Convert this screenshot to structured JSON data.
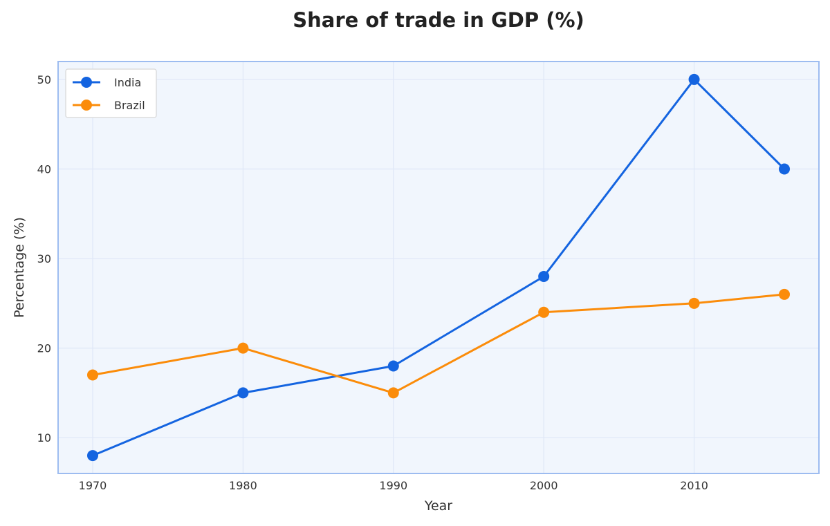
{
  "chart_data": {
    "type": "line",
    "title": "Share of trade in GDP (%)",
    "xlabel": "Year",
    "ylabel": "Percentage (%)",
    "x": [
      1970,
      1980,
      1990,
      2000,
      2010,
      2016
    ],
    "x_ticks": [
      "1970",
      "1980",
      "1990",
      "2000",
      "2010"
    ],
    "y_ticks": [
      "10",
      "20",
      "30",
      "40",
      "50"
    ],
    "xlim": [
      1967.7,
      2018.3
    ],
    "ylim": [
      6,
      52
    ],
    "grid": true,
    "legend_position": "top-left",
    "series": [
      {
        "name": "India",
        "color": "#1464e0",
        "values": [
          8,
          15,
          18,
          28,
          50,
          40
        ]
      },
      {
        "name": "Brazil",
        "color": "#fb8c0a",
        "values": [
          17,
          20,
          15,
          24,
          25,
          26
        ]
      }
    ],
    "colors": {
      "plot_background": "#f1f6fd",
      "plot_border": "#9dbcf0",
      "grid": "#dfe7f7"
    }
  }
}
